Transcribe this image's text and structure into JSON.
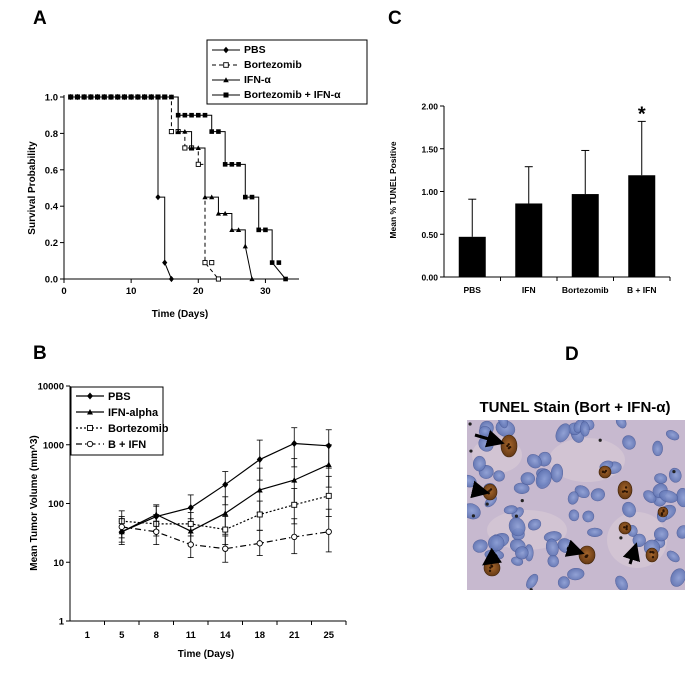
{
  "panels": {
    "a": {
      "letter": "A"
    },
    "b": {
      "letter": "B"
    },
    "c": {
      "letter": "C"
    },
    "d": {
      "letter": "D"
    }
  },
  "figure_d": {
    "title": "TUNEL Stain (Bort + IFN-α)",
    "description_colors": {
      "nuclei": "#6f82c2",
      "background": "#c9bcd0",
      "apoptotic": "#7a4a1e"
    }
  },
  "chart_data": [
    {
      "panel": "A",
      "type": "line",
      "xlabel": "Time (Days)",
      "ylabel": "Survival Probability",
      "xlim": [
        0,
        35
      ],
      "ylim": [
        0,
        1.0
      ],
      "xticks": [
        "0",
        "10",
        "20",
        "30"
      ],
      "yticks": [
        "0.0",
        "0.2",
        "0.4",
        "0.6",
        "0.8",
        "1.0"
      ],
      "legend_position": "top-right",
      "series": [
        {
          "name": "PBS",
          "marker": "diamond",
          "dash": "solid",
          "x": [
            1,
            14,
            14,
            15,
            15,
            16
          ],
          "y": [
            1.0,
            1.0,
            0.45,
            0.45,
            0.09,
            0.0
          ]
        },
        {
          "name": "Bortezomib",
          "marker": "open-square",
          "dash": "dashed",
          "x": [
            1,
            16,
            16,
            18,
            18,
            20,
            20,
            21,
            21,
            23
          ],
          "y": [
            1.0,
            1.0,
            0.81,
            0.81,
            0.72,
            0.72,
            0.63,
            0.63,
            0.09,
            0.0
          ]
        },
        {
          "name": "IFN-α",
          "marker": "triangle",
          "dash": "solid",
          "x": [
            1,
            17,
            17,
            19,
            19,
            21,
            21,
            23,
            23,
            25,
            25,
            27,
            27,
            28
          ],
          "y": [
            1.0,
            1.0,
            0.81,
            0.81,
            0.72,
            0.72,
            0.45,
            0.45,
            0.36,
            0.36,
            0.27,
            0.27,
            0.18,
            0.0
          ]
        },
        {
          "name": "Bortezomib + IFN-α",
          "marker": "square",
          "dash": "solid",
          "x": [
            1,
            17,
            17,
            22,
            22,
            24,
            24,
            27,
            27,
            29,
            29,
            31,
            31,
            33
          ],
          "y": [
            1.0,
            1.0,
            0.9,
            0.9,
            0.81,
            0.81,
            0.63,
            0.63,
            0.45,
            0.45,
            0.27,
            0.27,
            0.09,
            0.0
          ]
        }
      ]
    },
    {
      "panel": "B",
      "type": "line",
      "xlabel": "Time (Days)",
      "ylabel": "Mean Tumor Volume (mm^3)",
      "log_scale_y": true,
      "ylim": [
        1,
        10000
      ],
      "yticks": [
        "1",
        "10",
        "100",
        "1000",
        "10000"
      ],
      "categories": [
        "1",
        "5",
        "8",
        "11",
        "14",
        "18",
        "21",
        "25"
      ],
      "legend_position": "top-left",
      "series": [
        {
          "name": "PBS",
          "marker": "diamond",
          "dash": "solid",
          "values": [
            null,
            33,
            60,
            85,
            210,
            560,
            1050,
            960
          ],
          "err_hi": [
            null,
            50,
            95,
            140,
            350,
            1200,
            1950,
            1800
          ],
          "err_lo": [
            null,
            22,
            35,
            45,
            95,
            250,
            420,
            400
          ]
        },
        {
          "name": "IFN-alpha",
          "marker": "triangle",
          "dash": "solid",
          "values": [
            null,
            33,
            65,
            34,
            68,
            170,
            250,
            460
          ],
          "err_hi": [
            null,
            55,
            90,
            55,
            130,
            400,
            580,
            1000
          ],
          "err_lo": [
            null,
            20,
            45,
            20,
            30,
            70,
            95,
            190
          ]
        },
        {
          "name": "Bortezomib",
          "marker": "open-square",
          "dash": "dotted",
          "values": [
            null,
            50,
            45,
            45,
            36,
            65,
            95,
            135
          ],
          "err_hi": [
            null,
            75,
            65,
            70,
            60,
            110,
            180,
            290
          ],
          "err_lo": [
            null,
            32,
            28,
            28,
            20,
            35,
            45,
            60
          ]
        },
        {
          "name": "B + IFN",
          "marker": "open-circle",
          "dash": "dashdot",
          "values": [
            null,
            40,
            33,
            20,
            17,
            21,
            27,
            33
          ],
          "err_hi": [
            null,
            60,
            50,
            35,
            28,
            35,
            55,
            80
          ],
          "err_lo": [
            null,
            26,
            20,
            12,
            10,
            13,
            14,
            15
          ]
        }
      ]
    },
    {
      "panel": "C",
      "type": "bar",
      "xlabel": "",
      "ylabel": "Mean % TUNEL Positive",
      "ylim": [
        0,
        2.0
      ],
      "yticks": [
        "0.00",
        "0.50",
        "1.00",
        "1.50",
        "2.00"
      ],
      "categories": [
        "PBS",
        "IFN",
        "Bortezomib",
        "B + IFN"
      ],
      "values": [
        0.47,
        0.86,
        0.97,
        1.19
      ],
      "err": [
        0.44,
        0.43,
        0.51,
        0.63
      ],
      "annotations": [
        {
          "category": "B + IFN",
          "text": "*"
        }
      ],
      "bar_color": "#000000"
    }
  ]
}
